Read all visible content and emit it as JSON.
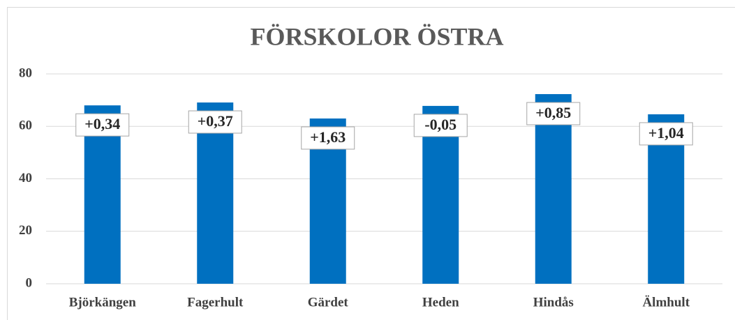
{
  "chart_data": {
    "type": "bar",
    "title": "FÖRSKOLOR ÖSTRA",
    "categories": [
      "Björkängen",
      "Fagerhult",
      "Gärdet",
      "Heden",
      "Hindås",
      "Älmhult"
    ],
    "values": [
      68.0,
      69.1,
      63.0,
      67.8,
      72.3,
      64.6
    ],
    "annotations": [
      "+0,34",
      "+0,37",
      "+1,63",
      "-0,05",
      "+0,85",
      "+1,04"
    ],
    "color": "#0070c0",
    "ylim": [
      0,
      80
    ],
    "yticks": [
      0,
      20,
      40,
      60,
      80
    ],
    "grid": true
  }
}
